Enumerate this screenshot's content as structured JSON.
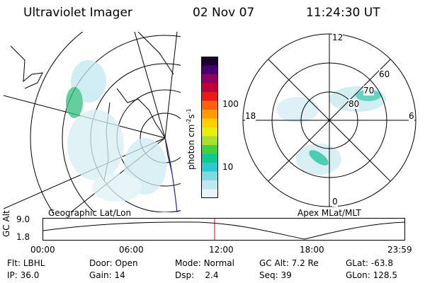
{
  "header": {
    "instrument": "Ultraviolet Imager",
    "date": "02 Nov 07",
    "time": "11:24:30 UT"
  },
  "geo_panel": {
    "label": "Geographic Lat/Lon"
  },
  "apex_panel": {
    "label": "Apex  MLat/MLT",
    "mlt_labels": [
      "12",
      "18",
      "6",
      "0"
    ],
    "mlat_labels": [
      "60",
      "70",
      "80"
    ]
  },
  "colorbar": {
    "unit_label": "photon cm",
    "unit_sup1": "-2",
    "unit_mid": "s",
    "unit_sup2": "-1",
    "tick_100": "100",
    "tick_10": "10",
    "colors": [
      "#1a0030",
      "#4a0070",
      "#900060",
      "#c0003a",
      "#e81a1a",
      "#ff6010",
      "#ff9a00",
      "#ffd000",
      "#e8ee10",
      "#a8e030",
      "#40d040",
      "#10c890",
      "#30c8d0",
      "#80d8e0",
      "#c0e8f0",
      "#e8f4f8"
    ]
  },
  "altitude_plot": {
    "ylabel": "GC Alt",
    "ymax": "9.0",
    "ymin": "1.8",
    "x_ticks": [
      "00:00",
      "06:00",
      "12:00",
      "18:00",
      "23:59"
    ],
    "current_marker_color": "#e00000"
  },
  "info": {
    "flt_label": "Flt:",
    "flt_value": "LBHL",
    "door_label": "Door:",
    "door_value": "Open",
    "mode_label": "Mode:",
    "mode_value": "Normal",
    "gcalt_label": "GC Alt:",
    "gcalt_value": "7.2 Re",
    "glat_label": "GLat:",
    "glat_value": "-63.8",
    "ip_label": "IP:",
    "ip_value": "36.0",
    "gain_label": "Gain:",
    "gain_value": "14",
    "dsp_label": "Dsp:",
    "dsp_value": "2.4",
    "seq_label": "Seq:",
    "seq_value": "39",
    "glon_label": "GLon:",
    "glon_value": "128.5"
  }
}
